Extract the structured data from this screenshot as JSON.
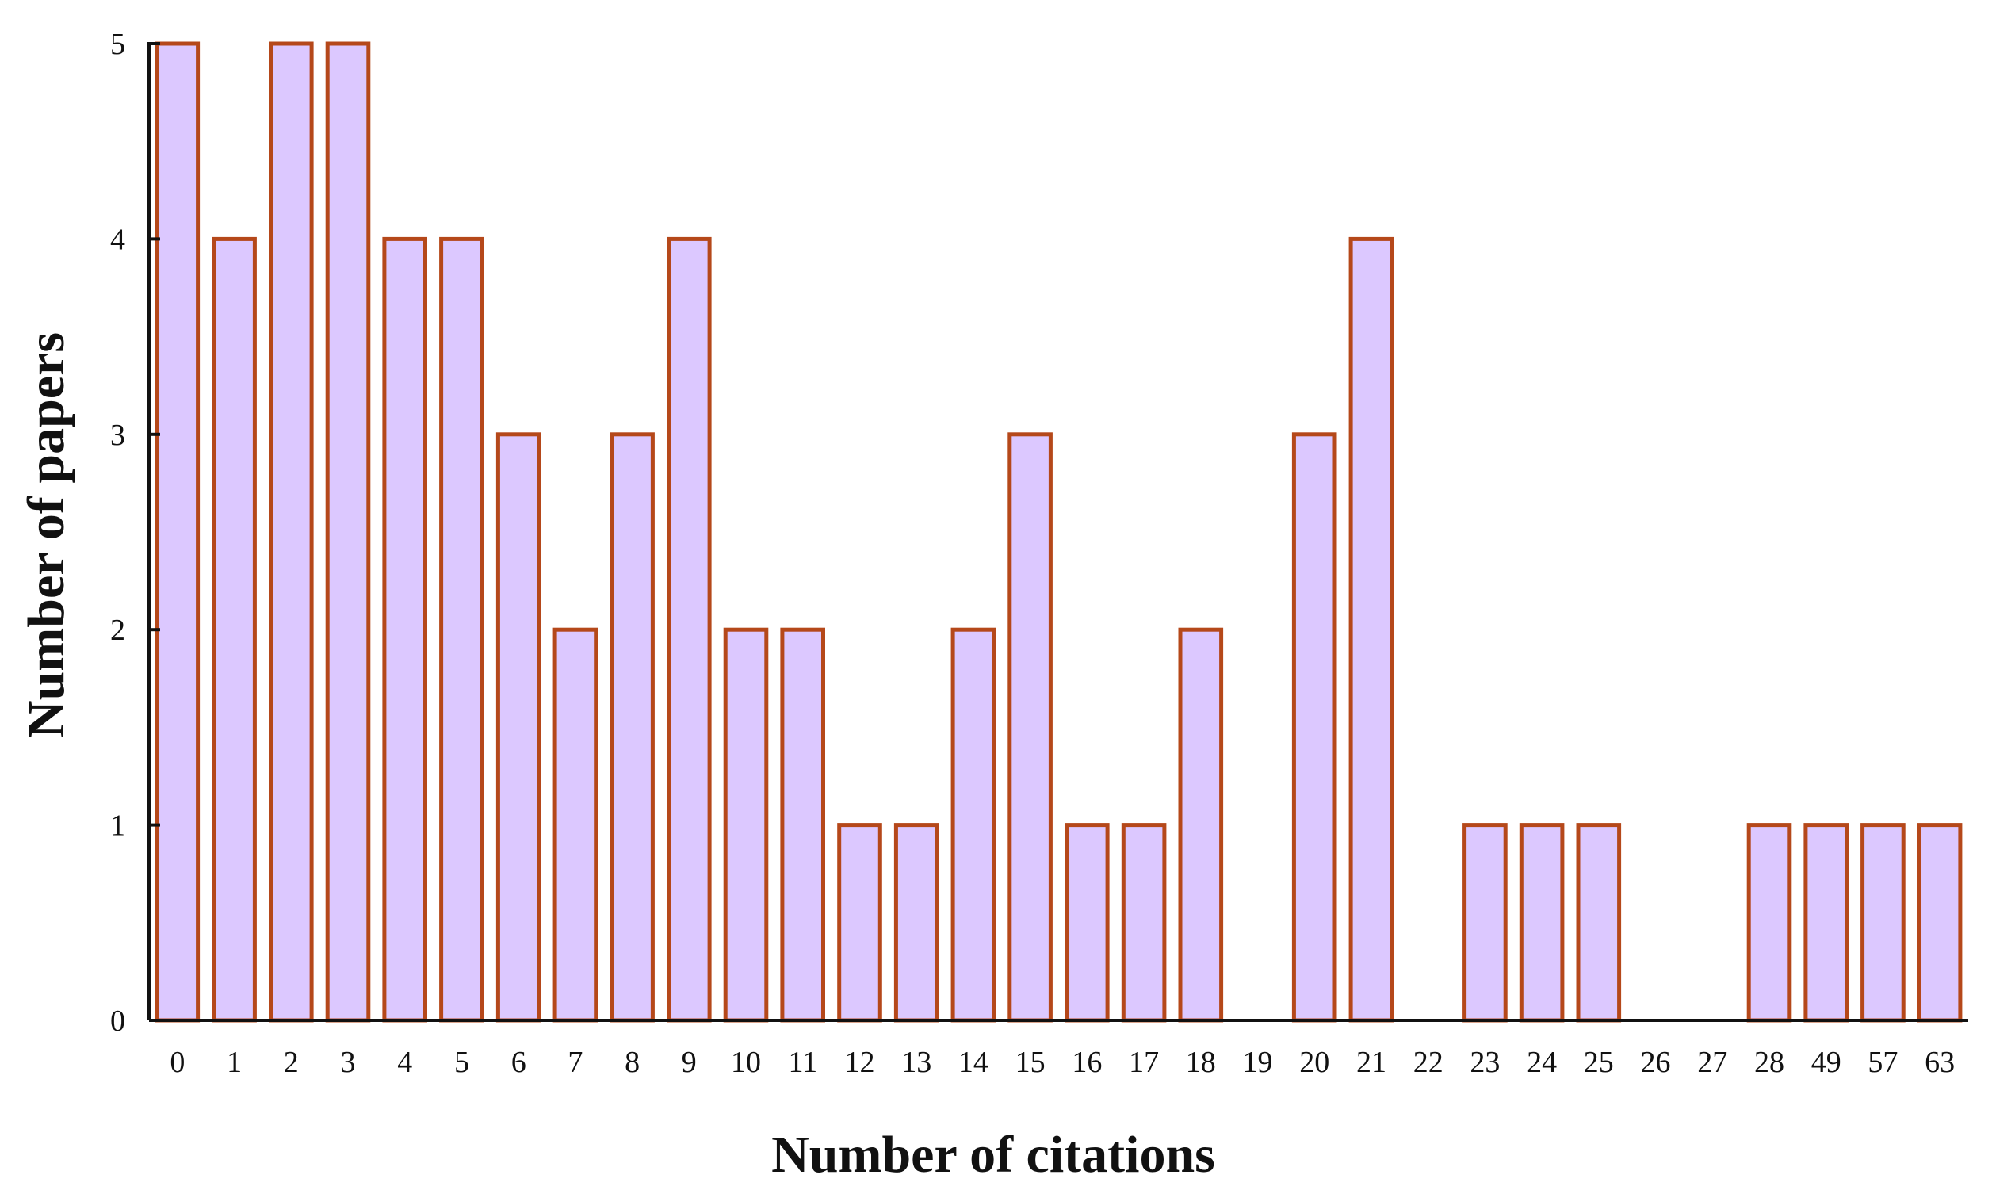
{
  "chart_data": {
    "type": "bar",
    "xlabel": "Number of citations",
    "ylabel": "Number of papers",
    "categories": [
      "0",
      "1",
      "2",
      "3",
      "4",
      "5",
      "6",
      "7",
      "8",
      "9",
      "10",
      "11",
      "12",
      "13",
      "14",
      "15",
      "16",
      "17",
      "18",
      "19",
      "20",
      "21",
      "22",
      "23",
      "24",
      "25",
      "26",
      "27",
      "28",
      "49",
      "57",
      "63"
    ],
    "values": [
      5,
      4,
      5,
      5,
      4,
      4,
      3,
      2,
      3,
      4,
      2,
      2,
      1,
      1,
      2,
      3,
      1,
      1,
      2,
      0,
      3,
      4,
      0,
      1,
      1,
      1,
      0,
      0,
      1,
      1,
      1,
      1
    ],
    "ylim": [
      0,
      5
    ],
    "yticks": [
      "0",
      "1",
      "2",
      "3",
      "4",
      "5"
    ],
    "grid": false,
    "legend": "none",
    "colors": {
      "bar_fill": "#dcc8ff",
      "bar_stroke": "#b5481a",
      "axis": "#111111"
    }
  }
}
